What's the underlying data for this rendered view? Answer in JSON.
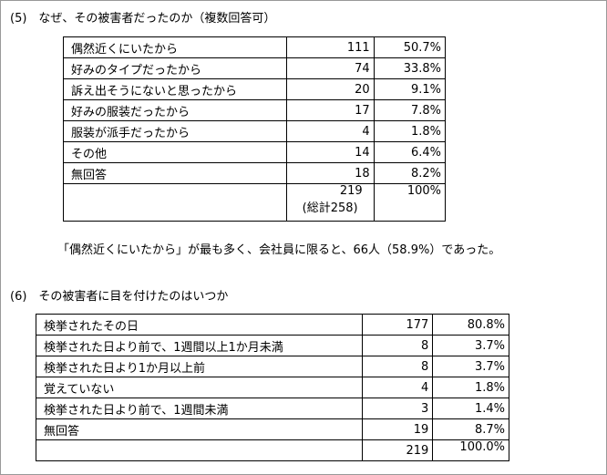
{
  "sections": [
    {
      "heading": "(5)　なぜ、その被害者だったのか（複数回答可）",
      "table": {
        "rows": [
          [
            "偶然近くにいたから",
            111,
            "50.7%"
          ],
          [
            "好みのタイプだったから",
            74,
            "33.8%"
          ],
          [
            "訴え出そうにないと思ったから",
            20,
            "9.1%"
          ],
          [
            "好みの服装だったから",
            17,
            "7.8%"
          ],
          [
            "服装が派手だったから",
            4,
            "1.8%"
          ],
          [
            "その他",
            14,
            "6.4%"
          ],
          [
            "無回答",
            18,
            "8.2%"
          ]
        ],
        "total": {
          "count": 219,
          "note": "(総計258)",
          "percent": "100%"
        }
      },
      "note": "「偶然近くにいたから」が最も多く、会社員に限ると、66人（58.9%）であった。"
    },
    {
      "heading": "(6)　その被害者に目を付けたのはいつか",
      "table": {
        "rows": [
          [
            "検挙されたその日",
            177,
            "80.8%"
          ],
          [
            "検挙された日より前で、1週間以上1か月未満",
            8,
            "3.7%"
          ],
          [
            "検挙された日より1か月以上前",
            8,
            "3.7%"
          ],
          [
            "覚えていない",
            4,
            "1.8%"
          ],
          [
            "検挙された日より前で、1週間未満",
            3,
            "1.4%"
          ],
          [
            "無回答",
            19,
            "8.7%"
          ]
        ],
        "total": {
          "count": 219,
          "percent": "100.0%"
        }
      }
    }
  ]
}
